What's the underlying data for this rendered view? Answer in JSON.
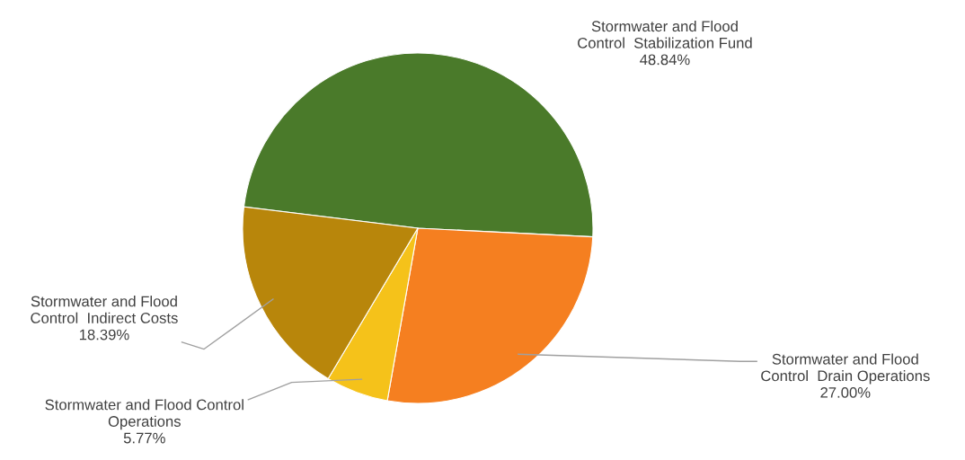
{
  "chart_data": {
    "type": "pie",
    "categories": [
      "Stormwater and Flood\nControl  Stabilization Fund",
      "Stormwater and Flood\nControl  Drain Operations",
      "Stormwater and Flood Control\nOperations",
      "Stormwater and Flood\nControl  Indirect Costs"
    ],
    "values": [
      48.84,
      27.0,
      5.77,
      18.39
    ],
    "value_labels": [
      "48.84%",
      "27.00%",
      "5.77%",
      "18.39%"
    ],
    "colors": [
      "#4a7a2a",
      "#f57f20",
      "#f5c21a",
      "#b8860b"
    ]
  }
}
